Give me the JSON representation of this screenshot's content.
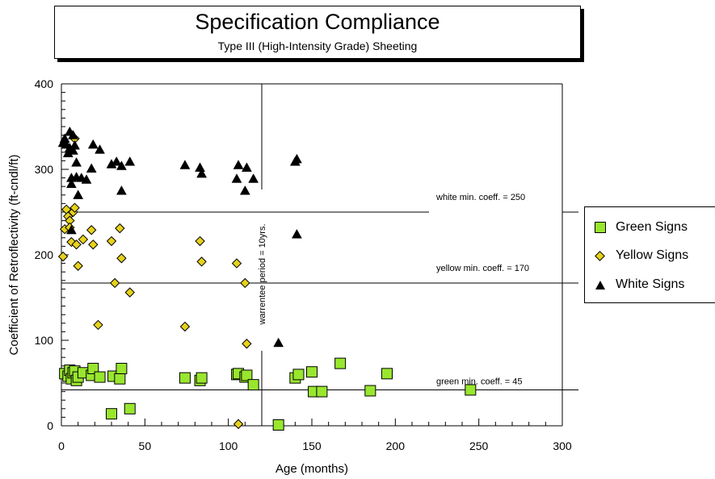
{
  "chart_data": {
    "type": "scatter",
    "title": "Specification Compliance",
    "subtitle": "Type III (High-Intensity Grade) Sheeting",
    "xlabel": "Age (months)",
    "ylabel": "Coefficient of Retroflectivity (ft-cndl/ft)",
    "xlim": [
      0,
      300
    ],
    "ylim": [
      0,
      400
    ],
    "x_ticks": [
      "0",
      "50",
      "100",
      "150",
      "200",
      "250",
      "300"
    ],
    "y_ticks": [
      "0",
      "100",
      "200",
      "300",
      "400"
    ],
    "legend_position": "right",
    "series": [
      {
        "name": "Green Signs",
        "marker": "square",
        "color": "#99e62e",
        "points": [
          [
            2,
            61
          ],
          [
            4,
            58
          ],
          [
            5,
            65
          ],
          [
            6,
            55
          ],
          [
            7,
            62
          ],
          [
            8,
            64
          ],
          [
            9,
            53
          ],
          [
            10,
            57
          ],
          [
            13,
            62
          ],
          [
            18,
            59
          ],
          [
            19,
            67
          ],
          [
            23,
            57
          ],
          [
            30,
            14
          ],
          [
            31,
            58
          ],
          [
            35,
            55
          ],
          [
            36,
            67
          ],
          [
            41,
            20
          ],
          [
            74,
            56
          ],
          [
            83,
            53
          ],
          [
            84,
            56
          ],
          [
            105,
            60
          ],
          [
            106,
            61
          ],
          [
            110,
            57
          ],
          [
            111,
            59
          ],
          [
            115,
            48
          ],
          [
            130,
            1
          ],
          [
            140,
            56
          ],
          [
            142,
            60
          ],
          [
            150,
            63
          ],
          [
            151,
            40
          ],
          [
            156,
            40
          ],
          [
            167,
            73
          ],
          [
            185,
            41
          ],
          [
            195,
            61
          ],
          [
            245,
            42
          ]
        ]
      },
      {
        "name": "Yellow Signs",
        "marker": "diamond",
        "color": "#e6d21c",
        "points": [
          [
            1,
            198
          ],
          [
            2,
            230
          ],
          [
            3,
            253
          ],
          [
            4,
            245
          ],
          [
            5,
            240
          ],
          [
            5,
            232
          ],
          [
            6,
            215
          ],
          [
            7,
            250
          ],
          [
            8,
            255
          ],
          [
            8,
            336
          ],
          [
            9,
            212
          ],
          [
            10,
            187
          ],
          [
            13,
            218
          ],
          [
            18,
            229
          ],
          [
            19,
            212
          ],
          [
            22,
            118
          ],
          [
            30,
            216
          ],
          [
            32,
            167
          ],
          [
            35,
            231
          ],
          [
            36,
            196
          ],
          [
            41,
            156
          ],
          [
            74,
            116
          ],
          [
            83,
            216
          ],
          [
            84,
            192
          ],
          [
            105,
            190
          ],
          [
            106,
            2
          ],
          [
            110,
            167
          ],
          [
            111,
            96
          ]
        ]
      },
      {
        "name": "White Signs",
        "marker": "triangle",
        "color": "#000000",
        "points": [
          [
            1,
            331
          ],
          [
            2,
            336
          ],
          [
            3,
            329
          ],
          [
            4,
            319
          ],
          [
            5,
            344
          ],
          [
            5,
            325
          ],
          [
            6,
            290
          ],
          [
            6,
            283
          ],
          [
            6,
            229
          ],
          [
            7,
            340
          ],
          [
            7,
            322
          ],
          [
            8,
            328
          ],
          [
            9,
            308
          ],
          [
            9,
            291
          ],
          [
            10,
            270
          ],
          [
            12,
            290
          ],
          [
            15,
            288
          ],
          [
            18,
            301
          ],
          [
            19,
            329
          ],
          [
            23,
            323
          ],
          [
            30,
            306
          ],
          [
            33,
            309
          ],
          [
            36,
            304
          ],
          [
            36,
            275
          ],
          [
            41,
            309
          ],
          [
            74,
            305
          ],
          [
            83,
            302
          ],
          [
            84,
            295
          ],
          [
            105,
            289
          ],
          [
            106,
            305
          ],
          [
            110,
            275
          ],
          [
            111,
            302
          ],
          [
            115,
            289
          ],
          [
            130,
            97
          ],
          [
            140,
            309
          ],
          [
            141,
            312
          ],
          [
            141,
            224
          ]
        ]
      }
    ],
    "annotations": [
      {
        "text": "white min. coeff. = 250",
        "y": 250
      },
      {
        "text": "yellow min. coeff. = 170",
        "y": 167
      },
      {
        "text": "green min. coeff. = 45",
        "y": 42
      },
      {
        "text": "warrentee period = 10yrs.",
        "x": 120
      }
    ]
  }
}
